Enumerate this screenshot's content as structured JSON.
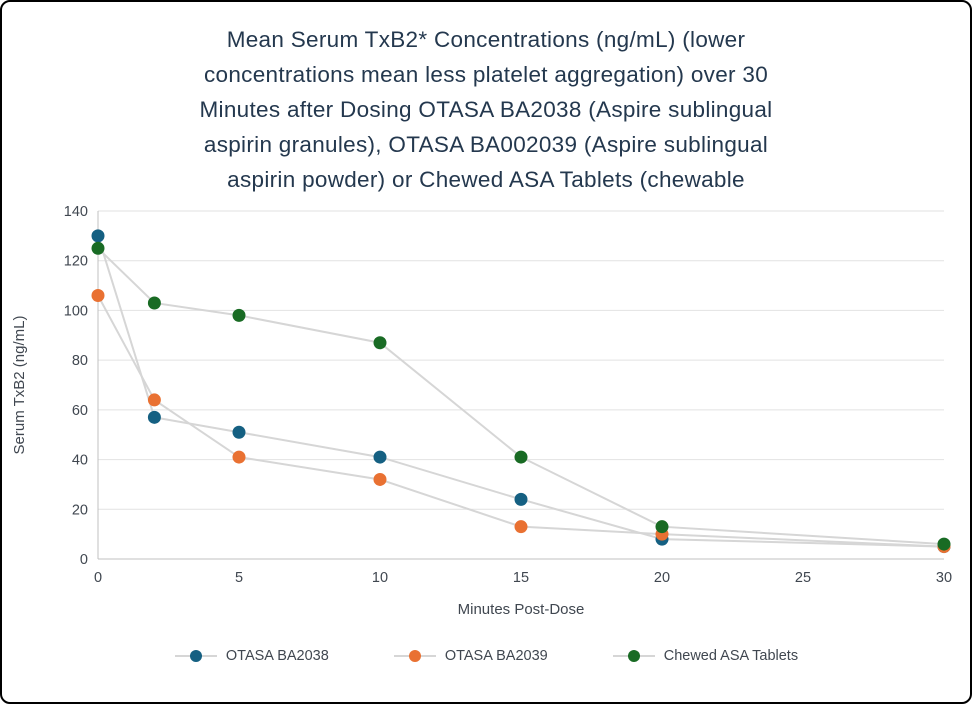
{
  "chart_data": {
    "type": "line",
    "title": "Mean Serum TxB2* Concentrations (ng/mL) (lower concentrations mean less platelet aggregation) over 30 Minutes after Dosing OTASA BA2038 (Aspire sublingual aspirin granules), OTASA BA002039 (Aspire sublingual aspirin powder) or Chewed ASA Tablets (chewable",
    "title_lines": [
      "Mean Serum TxB2* Concentrations (ng/mL) (lower",
      "concentrations mean less platelet aggregation) over 30",
      "Minutes after Dosing OTASA BA2038 (Aspire sublingual",
      "aspirin granules), OTASA BA002039 (Aspire sublingual",
      "aspirin powder) or Chewed ASA Tablets (chewable"
    ],
    "xlabel": "Minutes Post-Dose",
    "ylabel": "Serum TxB2 (ng/mL)",
    "xlim": [
      0,
      30
    ],
    "ylim": [
      0,
      140
    ],
    "x_ticks": [
      0,
      5,
      10,
      15,
      20,
      25,
      30
    ],
    "y_ticks": [
      0,
      20,
      40,
      60,
      80,
      100,
      120,
      140
    ],
    "grid": "horizontal-only",
    "legend_position": "bottom",
    "series": [
      {
        "name": "OTASA BA2038",
        "color": "#156082",
        "x": [
          0,
          2,
          5,
          10,
          15,
          20,
          30
        ],
        "y": [
          130,
          57,
          51,
          41,
          24,
          8,
          5
        ]
      },
      {
        "name": "OTASA BA2039",
        "color": "#e97132",
        "x": [
          0,
          2,
          5,
          10,
          15,
          20,
          30
        ],
        "y": [
          106,
          64,
          41,
          32,
          13,
          10,
          5
        ]
      },
      {
        "name": "Chewed ASA Tablets",
        "color": "#196b24",
        "x": [
          0,
          2,
          5,
          10,
          15,
          20,
          30
        ],
        "y": [
          125,
          103,
          98,
          87,
          41,
          13,
          6
        ]
      }
    ],
    "colors": {
      "title": "#24384e",
      "tick_text": "#404750",
      "grid": "#e2e2e2",
      "axis": "#c0c0c0",
      "connector": "#d6d6d6"
    }
  }
}
